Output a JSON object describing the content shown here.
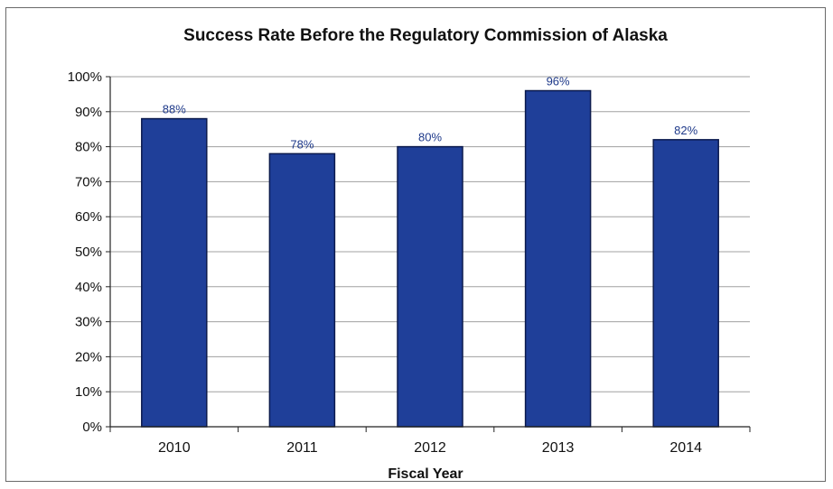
{
  "chart_data": {
    "type": "bar",
    "title": "Success Rate Before the Regulatory Commission of Alaska",
    "xlabel": "Fiscal Year",
    "ylabel": "",
    "categories": [
      "2010",
      "2011",
      "2012",
      "2013",
      "2014"
    ],
    "values": [
      88,
      78,
      80,
      96,
      82
    ],
    "data_labels": [
      "88%",
      "78%",
      "80%",
      "96%",
      "82%"
    ],
    "ylim": [
      0,
      100
    ],
    "yticks": [
      0,
      10,
      20,
      30,
      40,
      50,
      60,
      70,
      80,
      90,
      100
    ],
    "ytick_labels": [
      "0%",
      "10%",
      "20%",
      "30%",
      "40%",
      "50%",
      "60%",
      "70%",
      "80%",
      "90%",
      "100%"
    ],
    "grid": true,
    "legend": "none",
    "bar_color": "#1f3f99",
    "bar_edge_color": "#0b1a4d",
    "data_label_color": "#1f3a8a"
  }
}
